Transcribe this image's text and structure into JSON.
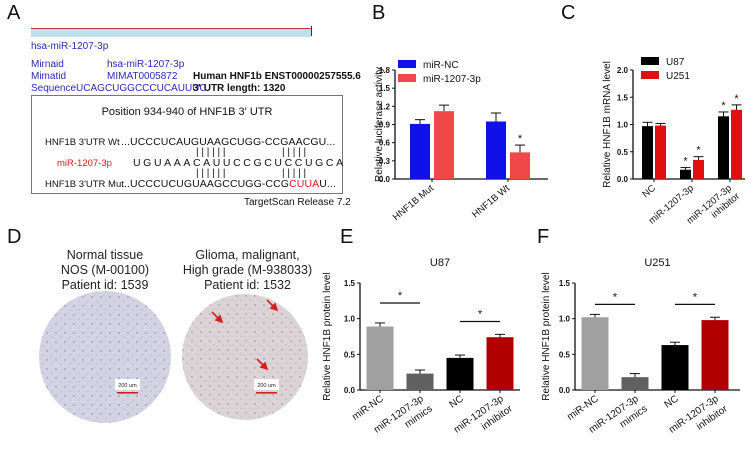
{
  "panels": {
    "A": {
      "letter": "A",
      "mirna_name": "hsa-miR-1207-3p",
      "info": {
        "mirnaid_label": "Mirnaid",
        "mirnaid_value": "hsa-miR-1207-3p",
        "mimatid_label": "Mimatid",
        "mimatid_value": "MIMAT0005872",
        "sequence_label": "Sequence",
        "sequence_value": "UCAGCUGGCCCUCAUUUC"
      },
      "gene_info": {
        "transcript": "Human HNF1b  ENST00000257555.6",
        "utr_length": "3' UTR length: 1320"
      },
      "alignment": {
        "title": "Position 934-940 of HNF1B 3' UTR",
        "wt_label": "HNF1B 3'UTR Wt",
        "wt_seq": "...UCCCUCAUGUAAGCUGG-CCGAACGU...",
        "mir_label": "miR-1207-3p",
        "mir_seq": "UGUAAACAUUCCGCUCCUGCA",
        "mut_label": "HNF1B 3'UTR Mut",
        "mut_seq_prefix": "...UCCCUCUGUAAGCCUGG-CCG",
        "mut_seq_mutated": "CUUA",
        "mut_seq_suffix": "U...",
        "pair_marks_left": "| | | | | |",
        "pair_marks_right": "| | | | |"
      },
      "footer": "TargetScan Release 7.2"
    },
    "D": {
      "letter": "D",
      "normal": {
        "line1": "Normal tissue",
        "line2": "NOS (M-00100)",
        "line3": "Patient id: 1539",
        "scale": "200 um"
      },
      "glioma": {
        "line1": "Glioma, malignant,",
        "line2": "High grade (M-938033)",
        "line3": "Patient id: 1532",
        "scale": "200 um"
      }
    }
  },
  "colors": {
    "blue": "#1010e8",
    "light_red": "#f04848",
    "black": "#000000",
    "red": "#e01010",
    "light_gray": "#a0a0a0",
    "dark_gray": "#606060",
    "dark_red": "#b00000",
    "seq_red": "#d02020",
    "link_blue": "#2a2ab0"
  },
  "chart_data": [
    {
      "id": "B",
      "letter": "B",
      "type": "bar",
      "title": "",
      "xlabel": "",
      "ylabel": "Relative luciferase activity",
      "ylim": [
        0,
        1.8
      ],
      "yticks": [
        "0.0",
        "0.3",
        "0.6",
        "0.9",
        "1.2",
        "1.5",
        "1.8"
      ],
      "categories": [
        "HNF1B Mut",
        "HNF1B Wt"
      ],
      "legend": "top-left",
      "series": [
        {
          "name": "miR-NC",
          "color": "#1010e8",
          "values": [
            0.91,
            0.95
          ],
          "errors": [
            0.07,
            0.14
          ],
          "sig": [
            "",
            ""
          ]
        },
        {
          "name": "miR-1207-3p",
          "color": "#f04848",
          "values": [
            1.12,
            0.44
          ],
          "errors": [
            0.1,
            0.12
          ],
          "sig": [
            "",
            "*"
          ]
        }
      ]
    },
    {
      "id": "C",
      "letter": "C",
      "type": "bar",
      "title": "",
      "xlabel": "",
      "ylabel": "Relative HNF1B mRNA level",
      "ylim": [
        0,
        2.0
      ],
      "yticks": [
        "0.0",
        "0.5",
        "1.0",
        "1.5",
        "2.0"
      ],
      "categories": [
        "NC",
        "miR-1207-3p",
        "miR-1207-3p inhibitor"
      ],
      "legend": "top-left",
      "series": [
        {
          "name": "U87",
          "color": "#000000",
          "values": [
            0.97,
            0.17,
            1.15
          ],
          "errors": [
            0.07,
            0.04,
            0.08
          ],
          "sig": [
            "",
            "*",
            "*"
          ]
        },
        {
          "name": "U251",
          "color": "#e01010",
          "values": [
            0.98,
            0.35,
            1.27
          ],
          "errors": [
            0.04,
            0.06,
            0.09
          ],
          "sig": [
            "",
            "*",
            "*"
          ]
        }
      ]
    },
    {
      "id": "E",
      "letter": "E",
      "type": "bar",
      "title": "U87",
      "xlabel": "",
      "ylabel": "Relative HNF1B protein level",
      "ylim": [
        0,
        1.5
      ],
      "yticks": [
        "0.0",
        "0.5",
        "1.0",
        "1.5"
      ],
      "categories": [
        "miR-NC",
        "miR-1207-3p mimics",
        "NC",
        "miR-1207-3p inhibitor"
      ],
      "colors": [
        "#a0a0a0",
        "#606060",
        "#000000",
        "#b00000"
      ],
      "values": [
        0.89,
        0.23,
        0.45,
        0.74
      ],
      "errors": [
        0.05,
        0.05,
        0.04,
        0.04
      ],
      "comparisons": [
        {
          "from": 0,
          "to": 1,
          "level": 1.22,
          "label": "*"
        },
        {
          "from": 2,
          "to": 3,
          "level": 0.96,
          "label": "*"
        }
      ]
    },
    {
      "id": "F",
      "letter": "F",
      "type": "bar",
      "title": "U251",
      "xlabel": "",
      "ylabel": "Relative HNF1B protein level",
      "ylim": [
        0,
        1.5
      ],
      "yticks": [
        "0.0",
        "0.5",
        "1.0",
        "1.5"
      ],
      "categories": [
        "miR-NC",
        "miR-1207-3p mimics",
        "NC",
        "miR-1207-3p inhibitor"
      ],
      "colors": [
        "#a0a0a0",
        "#606060",
        "#000000",
        "#b00000"
      ],
      "values": [
        1.02,
        0.18,
        0.63,
        0.98
      ],
      "errors": [
        0.04,
        0.05,
        0.04,
        0.04
      ],
      "comparisons": [
        {
          "from": 0,
          "to": 1,
          "level": 1.2,
          "label": "*"
        },
        {
          "from": 2,
          "to": 3,
          "level": 1.2,
          "label": "*"
        }
      ]
    }
  ]
}
